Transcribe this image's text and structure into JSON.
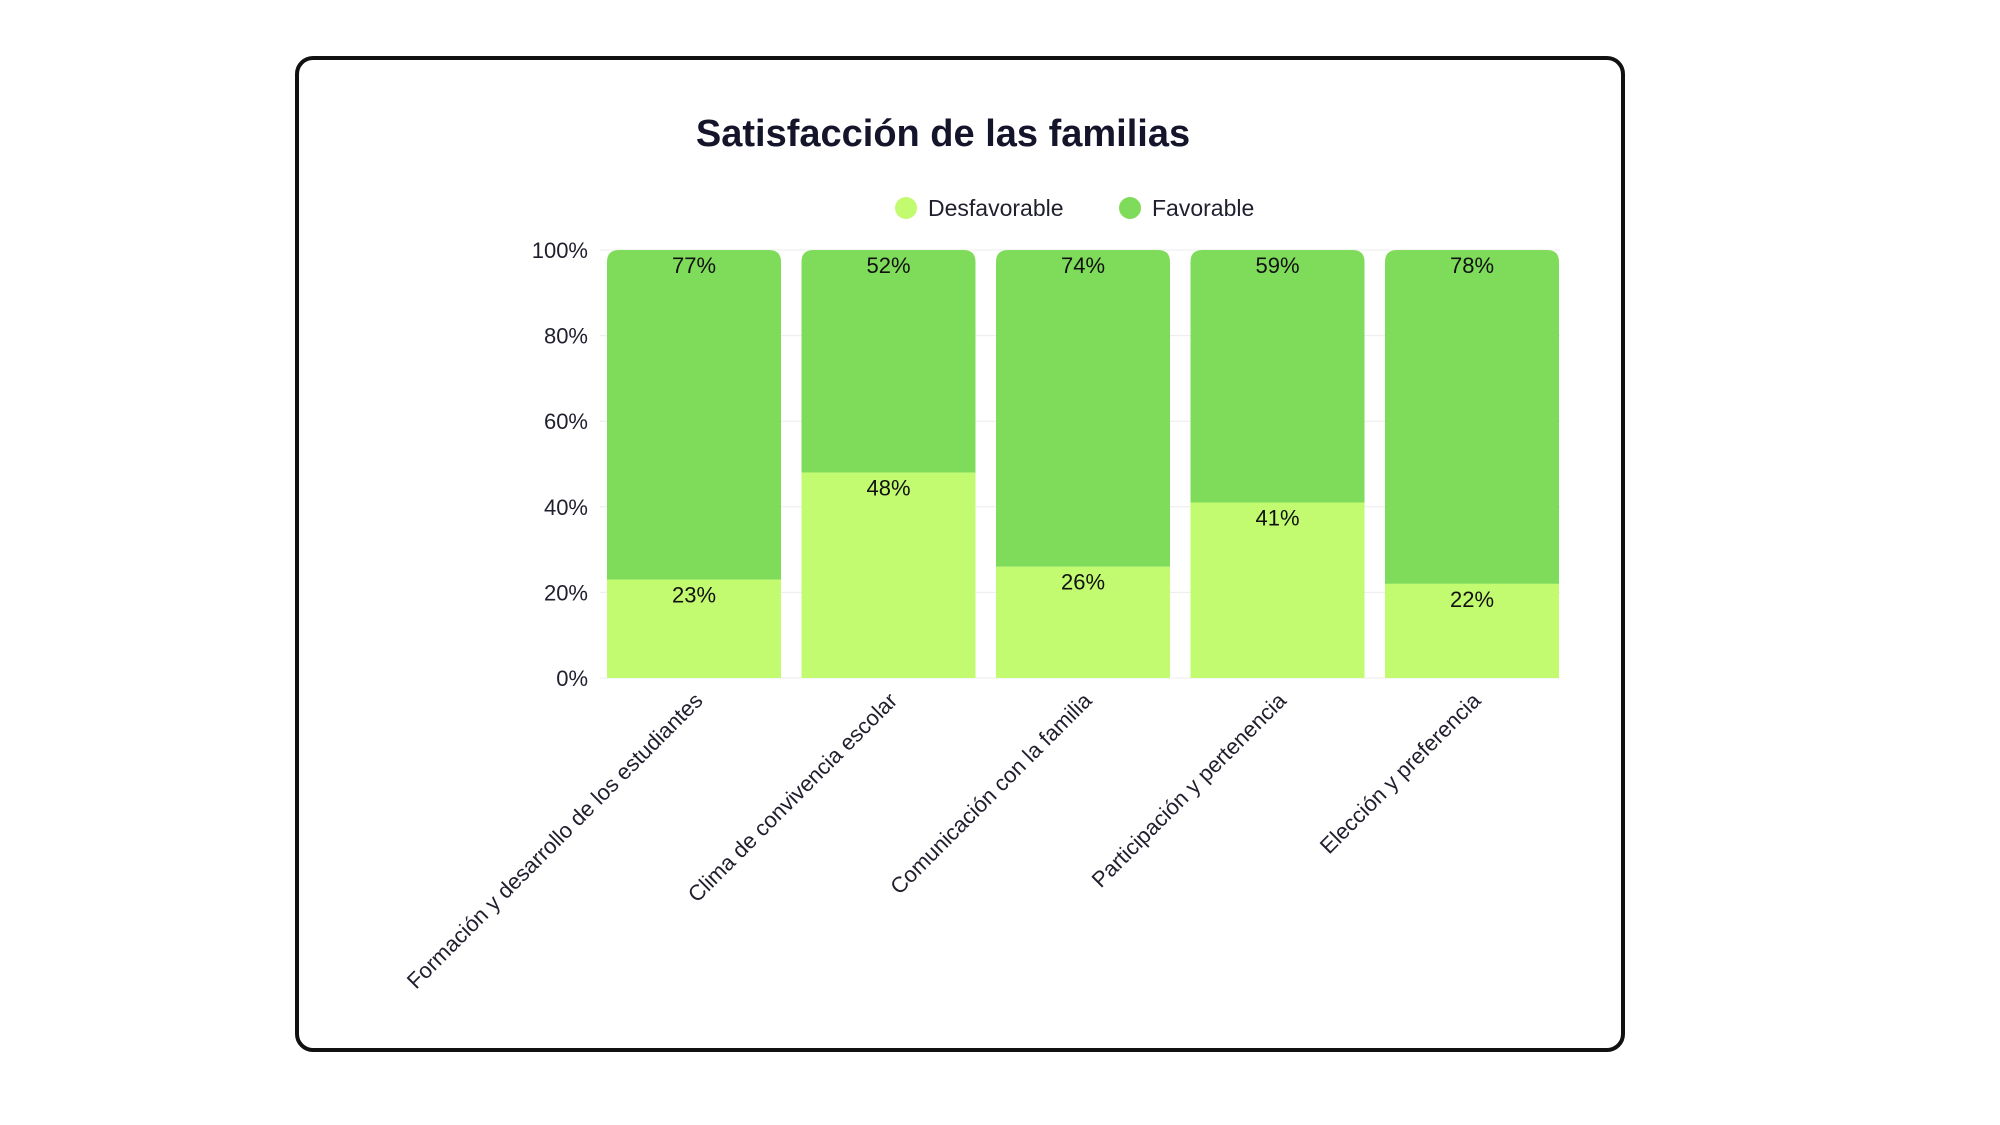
{
  "chart_data": {
    "type": "bar",
    "stacked": true,
    "title": "Satisfacción de las familias",
    "xlabel": "",
    "ylabel": "",
    "ylim": [
      0,
      100
    ],
    "y_ticks": [
      "0%",
      "20%",
      "40%",
      "60%",
      "80%",
      "100%"
    ],
    "y_tick_values": [
      0,
      20,
      40,
      60,
      80,
      100
    ],
    "legend_position": "top",
    "grid": true,
    "categories": [
      "Formación y desarrollo de los estudiantes",
      "Clima de convivencia escolar",
      "Comunicación con la familia",
      "Participación y pertenencia",
      "Elección y preferencia"
    ],
    "series": [
      {
        "name": "Desfavorable",
        "color": "#c2fb6f",
        "values": [
          23,
          48,
          26,
          41,
          22
        ],
        "labels": [
          "23%",
          "48%",
          "26%",
          "41%",
          "22%"
        ]
      },
      {
        "name": "Favorable",
        "color": "#7fdb5a",
        "values": [
          77,
          52,
          74,
          59,
          78
        ],
        "labels": [
          "77%",
          "52%",
          "74%",
          "59%",
          "78%"
        ]
      }
    ]
  }
}
